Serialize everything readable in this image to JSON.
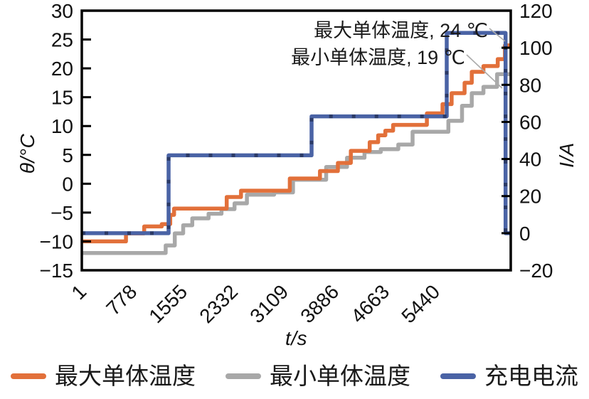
{
  "chart_data": {
    "type": "line",
    "subtype": "step",
    "title": "",
    "xlabel": "t/s",
    "ylabel_left": "θ/°C",
    "ylabel_right": "I/A",
    "x_range": [
      0,
      6600
    ],
    "x_ticks": [
      1,
      778,
      1555,
      2332,
      3109,
      3886,
      4663,
      5440
    ],
    "y_left": {
      "range": [
        -15,
        30
      ],
      "ticks": [
        30,
        25,
        20,
        15,
        10,
        5,
        0,
        -5,
        -10,
        -15
      ]
    },
    "y_right": {
      "range": [
        -20,
        120
      ],
      "ticks": [
        120,
        100,
        80,
        60,
        40,
        20,
        0,
        -20
      ]
    },
    "grid": false,
    "legend_position": "bottom",
    "series": [
      {
        "name": "最小单体温度",
        "axis": "left",
        "color": "#A8A8A8",
        "points": [
          [
            0,
            -12
          ],
          [
            1290,
            -10.7
          ],
          [
            1430,
            -8.6
          ],
          [
            1560,
            -7.2
          ],
          [
            1700,
            -6.0
          ],
          [
            1950,
            -5.2
          ],
          [
            2150,
            -4.4
          ],
          [
            2350,
            -3.4
          ],
          [
            2540,
            -1.9
          ],
          [
            2960,
            -1.5
          ],
          [
            3250,
            0.7
          ],
          [
            3760,
            2.9
          ],
          [
            4080,
            4.5
          ],
          [
            4350,
            5.5
          ],
          [
            4600,
            6.0
          ],
          [
            4870,
            6.8
          ],
          [
            5090,
            9.0
          ],
          [
            5640,
            10.9
          ],
          [
            5850,
            13.5
          ],
          [
            6000,
            15.7
          ],
          [
            6180,
            16.8
          ],
          [
            6390,
            19.0
          ]
        ]
      },
      {
        "name": "最大单体温度",
        "axis": "left",
        "color": "#E2703A",
        "points": [
          [
            0,
            -10
          ],
          [
            680,
            -8.6
          ],
          [
            960,
            -7.4
          ],
          [
            1230,
            -7.0
          ],
          [
            1360,
            -5.4
          ],
          [
            1420,
            -4.3
          ],
          [
            2230,
            -2.3
          ],
          [
            2450,
            -1.2
          ],
          [
            3200,
            0.9
          ],
          [
            3665,
            2.2
          ],
          [
            3940,
            3.6
          ],
          [
            4140,
            5.7
          ],
          [
            4430,
            7.2
          ],
          [
            4560,
            8.4
          ],
          [
            4670,
            9.2
          ],
          [
            4790,
            10.2
          ],
          [
            5310,
            12.2
          ],
          [
            5550,
            13.8
          ],
          [
            5690,
            15.7
          ],
          [
            5890,
            17.5
          ],
          [
            6000,
            19.4
          ],
          [
            6180,
            20.4
          ],
          [
            6400,
            21.6
          ],
          [
            6510,
            24
          ]
        ]
      },
      {
        "name": "充电电流",
        "axis": "right",
        "color": "#4A63A5",
        "marker_color": "#2B3A66",
        "points": [
          [
            0,
            0
          ],
          [
            1335,
            42
          ],
          [
            3535,
            63
          ],
          [
            5615,
            108
          ],
          [
            6520,
            0
          ]
        ]
      }
    ],
    "annotations": [
      {
        "text": "最大单体温度, 24 ℃",
        "series": "最大单体温度",
        "value": "24 ℃"
      },
      {
        "text": "最小单体温度, 19 ℃",
        "series": "最小单体温度",
        "value": "19 ℃"
      }
    ]
  },
  "legend": {
    "items": [
      {
        "label": "最大单体温度",
        "color": "#E2703A"
      },
      {
        "label": "最小单体温度",
        "color": "#A8A8A8"
      },
      {
        "label": "充电电流",
        "color": "#4A63A5"
      }
    ]
  }
}
